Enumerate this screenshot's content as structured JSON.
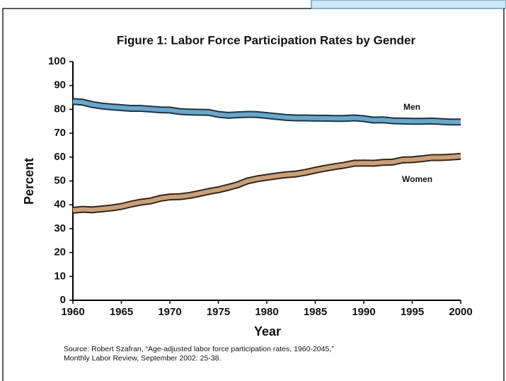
{
  "chart_data": {
    "type": "line",
    "title": "Figure 1: Labor Force Participation Rates by Gender",
    "x_label": "Year",
    "y_label": "Percent",
    "x": [
      1960,
      1961,
      1962,
      1963,
      1964,
      1965,
      1966,
      1967,
      1968,
      1969,
      1970,
      1971,
      1972,
      1973,
      1974,
      1975,
      1976,
      1977,
      1978,
      1979,
      1980,
      1981,
      1982,
      1983,
      1984,
      1985,
      1986,
      1987,
      1988,
      1989,
      1990,
      1991,
      1992,
      1993,
      1994,
      1995,
      1996,
      1997,
      1998,
      1999,
      2000
    ],
    "series": [
      {
        "name": "Men",
        "color": "#6aa7c9",
        "outline": "#1d3442",
        "values": [
          83.3,
          83,
          82,
          81.4,
          81,
          80.7,
          80.4,
          80.4,
          80.1,
          79.8,
          79.7,
          79.1,
          78.9,
          78.8,
          78.7,
          77.9,
          77.5,
          77.7,
          77.9,
          77.8,
          77.4,
          77,
          76.6,
          76.4,
          76.4,
          76.3,
          76.3,
          76.2,
          76.2,
          76.4,
          76.1,
          75.5,
          75.6,
          75.2,
          75.1,
          75,
          75,
          75.1,
          74.9,
          74.7,
          74.7
        ]
      },
      {
        "name": "Women",
        "color": "#c9a079",
        "outline": "#35261a",
        "values": [
          37.7,
          38.1,
          37.9,
          38.3,
          38.7,
          39.3,
          40.3,
          41.1,
          41.6,
          42.7,
          43.3,
          43.4,
          43.9,
          44.7,
          45.6,
          46.3,
          47.3,
          48.4,
          50,
          50.9,
          51.5,
          52.1,
          52.6,
          52.9,
          53.6,
          54.5,
          55.3,
          56,
          56.6,
          57.4,
          57.5,
          57.4,
          57.8,
          57.9,
          58.8,
          58.9,
          59.3,
          59.8,
          59.8,
          60,
          60.3
        ]
      }
    ],
    "xlim": [
      1960,
      2000
    ],
    "xticks": [
      1960,
      1965,
      1970,
      1975,
      1980,
      1985,
      1990,
      1995,
      2000
    ],
    "ylim": [
      0,
      100
    ],
    "yticks": [
      0,
      10,
      20,
      30,
      40,
      50,
      60,
      70,
      80,
      90,
      100
    ],
    "grid": false,
    "source": [
      "Source: Robert Szafran, “Age-adjusted labor force participation rates, 1960-2045,”",
      "Monthly Labor Review, September 2002: 25-38."
    ]
  }
}
